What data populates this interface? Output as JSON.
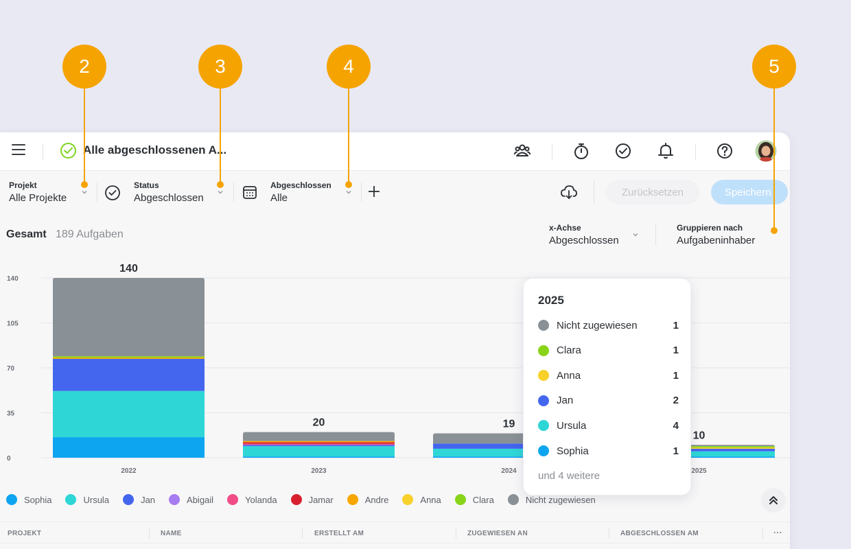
{
  "callouts": [
    "2",
    "3",
    "4",
    "5"
  ],
  "header": {
    "title": "Alle abgeschlossenen A..."
  },
  "filters": {
    "project_label": "Projekt",
    "project_value": "Alle Projekte",
    "status_label": "Status",
    "status_value": "Abgeschlossen",
    "completed_label": "Abgeschlossen",
    "completed_value": "Alle",
    "reset_label": "Zurücksetzen",
    "save_label": "Speichern"
  },
  "summary": {
    "label": "Gesamt",
    "count": "189 Aufgaben"
  },
  "axis_controls": {
    "x_label": "x-Achse",
    "x_value": "Abgeschlossen",
    "group_label": "Gruppieren nach",
    "group_value": "Aufgabeninhaber"
  },
  "colors": {
    "Sophia": "#0ea5f0",
    "Ursula": "#2fd6d6",
    "Jan": "#4466ee",
    "Abigail": "#a67cf0",
    "Yolanda": "#f04c86",
    "Jamar": "#d8202e",
    "Andre": "#f7a600",
    "Anna": "#f7d02a",
    "Clara": "#89d418",
    "Nicht zugewiesen": "#8a9196"
  },
  "chart_data": {
    "type": "bar",
    "stacked": true,
    "categories": [
      "2022",
      "2023",
      "2024",
      "2025"
    ],
    "totals": [
      140,
      20,
      19,
      10
    ],
    "y_ticks": [
      "0",
      "35",
      "70",
      "105",
      "140"
    ],
    "ylim": [
      0,
      140
    ],
    "series": [
      {
        "name": "Sophia",
        "values": [
          16,
          1,
          1,
          1
        ]
      },
      {
        "name": "Ursula",
        "values": [
          36,
          8,
          6,
          4
        ]
      },
      {
        "name": "Jan",
        "values": [
          25,
          1,
          4,
          2
        ]
      },
      {
        "name": "Abigail",
        "values": [
          0,
          0,
          0,
          0
        ]
      },
      {
        "name": "Yolanda",
        "values": [
          0,
          1,
          0,
          0
        ]
      },
      {
        "name": "Jamar",
        "values": [
          0,
          1,
          0,
          0
        ]
      },
      {
        "name": "Andre",
        "values": [
          1,
          1,
          0,
          0
        ]
      },
      {
        "name": "Anna",
        "values": [
          0,
          0,
          0,
          1
        ]
      },
      {
        "name": "Clara",
        "values": [
          1,
          0,
          0,
          1
        ]
      },
      {
        "name": "Nicht zugewiesen",
        "values": [
          61,
          7,
          8,
          1
        ]
      }
    ]
  },
  "legend": [
    "Sophia",
    "Ursula",
    "Jan",
    "Abigail",
    "Yolanda",
    "Jamar",
    "Andre",
    "Anna",
    "Clara",
    "Nicht zugewiesen"
  ],
  "tooltip": {
    "year": "2025",
    "rows": [
      {
        "name": "Nicht zugewiesen",
        "value": "1"
      },
      {
        "name": "Clara",
        "value": "1"
      },
      {
        "name": "Anna",
        "value": "1"
      },
      {
        "name": "Jan",
        "value": "2"
      },
      {
        "name": "Ursula",
        "value": "4"
      },
      {
        "name": "Sophia",
        "value": "1"
      }
    ],
    "more": "und 4 weitere"
  },
  "table": {
    "columns": [
      "PROJEKT",
      "NAME",
      "ERSTELLT AM",
      "ZUGEWIESEN AN",
      "ABGESCHLOSSEN AM"
    ],
    "more_label": "···"
  }
}
